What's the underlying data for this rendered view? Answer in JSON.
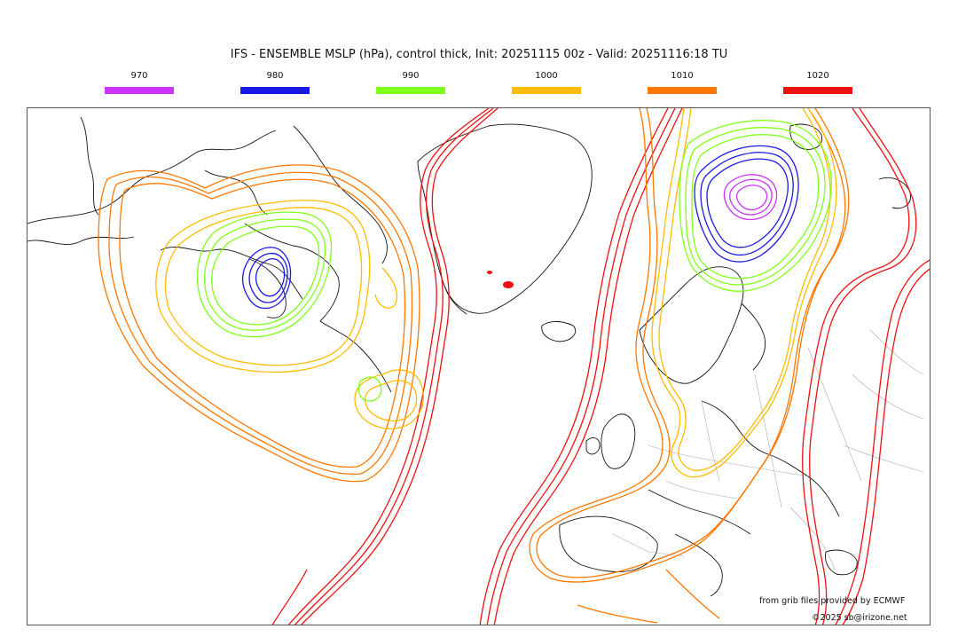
{
  "title": "IFS - ENSEMBLE MSLP (hPa), control thick, Init: 20251115 00z - Valid: 20251116:18 TU",
  "legend": [
    {
      "label": "970",
      "color": "#cc33ff"
    },
    {
      "label": "980",
      "color": "#1a1ae6"
    },
    {
      "label": "990",
      "color": "#80ff1a"
    },
    {
      "label": "1000",
      "color": "#ffbb00"
    },
    {
      "label": "1010",
      "color": "#ff7700"
    },
    {
      "label": "1020",
      "color": "#ee1111"
    }
  ],
  "credits": {
    "source": "from grib files provided by ECMWF",
    "copyright": "©2025 sb@irizone.net"
  }
}
